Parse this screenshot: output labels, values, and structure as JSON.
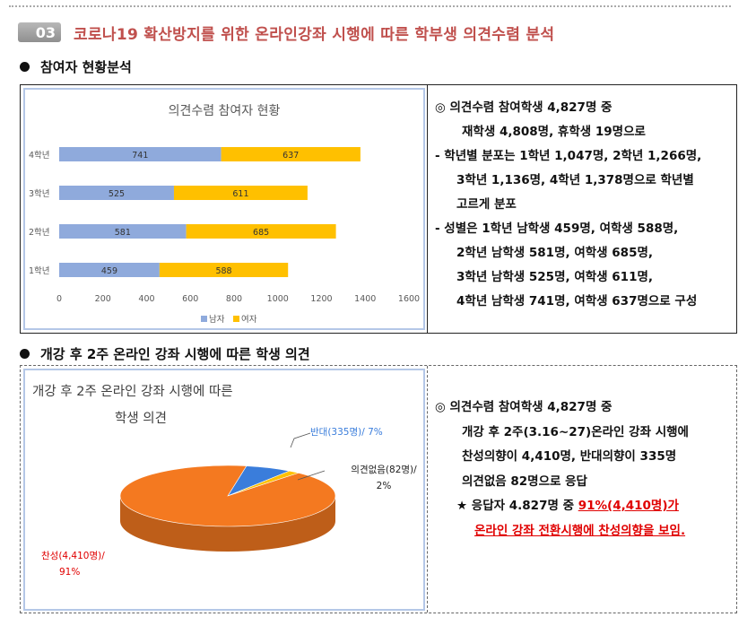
{
  "section": {
    "number": "03",
    "title": "코로나19 확산방지를 위한 온라인강좌 시행에 따른 학부생 의견수렴 분석"
  },
  "sub1": {
    "title": "참여자 현황분석"
  },
  "sub2": {
    "title": "개강 후 2주 온라인 강좌 시행에 따른 학생 의견"
  },
  "chart_data": [
    {
      "type": "bar",
      "stacked": true,
      "orientation": "horizontal",
      "title": "의견수렴 참여자 현황",
      "categories": [
        "1학년",
        "2학년",
        "3학년",
        "4학년"
      ],
      "series": [
        {
          "name": "남자",
          "values": [
            459,
            581,
            525,
            741
          ],
          "color": "#8faadc"
        },
        {
          "name": "여자",
          "values": [
            588,
            685,
            611,
            637
          ],
          "color": "#ffc000"
        }
      ],
      "xlim": [
        0,
        1600
      ],
      "xticks": [
        "0",
        "200",
        "400",
        "600",
        "800",
        "1000",
        "1200",
        "1400",
        "1600"
      ],
      "legend": "bottom",
      "grid": false
    },
    {
      "type": "pie",
      "title_lines": [
        "개강 후 2주 온라인 강좌 시행에 따른",
        "학생 의견"
      ],
      "slices": [
        {
          "label_lines": [
            "찬성(4,410명)/",
            "91%"
          ],
          "value": 4410,
          "percent": 91,
          "color": "#f47920"
        },
        {
          "label_lines": [
            "반대(335명)/ 7%"
          ],
          "value": 335,
          "percent": 7,
          "color": "#3a7ddb"
        },
        {
          "label_lines": [
            "의견없음(82명)/",
            "2%"
          ],
          "value": 82,
          "percent": 2,
          "color": "#ffc000"
        }
      ]
    }
  ],
  "box1_text": [
    "◎ 의견수렴 참여학생 4,827명 중",
    "재학생 4,808명, 휴학생 19명으로",
    "- 학년별 분포는 1학년 1,047명, 2학년 1,266명,",
    "3학년 1,136명, 4학년 1,378명으로 학년별",
    "고르게 분포",
    "- 성별은 1학년 남학생 459명, 여학생 588명,",
    "2학년 남학생 581명, 여학생 685명,",
    "3학년 남학생 525명, 여학생 611명,",
    "4학년 남학생 741명, 여학생 637명으로 구성"
  ],
  "box2_text": [
    "◎ 의견수렴 참여학생 4,827명 중",
    "개강 후 2주(3.16~27)온라인 강좌 시행에",
    "찬성의향이 4,410명, 반대의향이 335명",
    "의견없음 82명으로 응답",
    "★ 응답자 4.827명 중 ",
    "91%(4,410명)가",
    "온라인 강좌 전환시행에 찬성의향을 보임."
  ],
  "colors": {
    "accent": "#c0504d",
    "highlight": "#e00000"
  }
}
